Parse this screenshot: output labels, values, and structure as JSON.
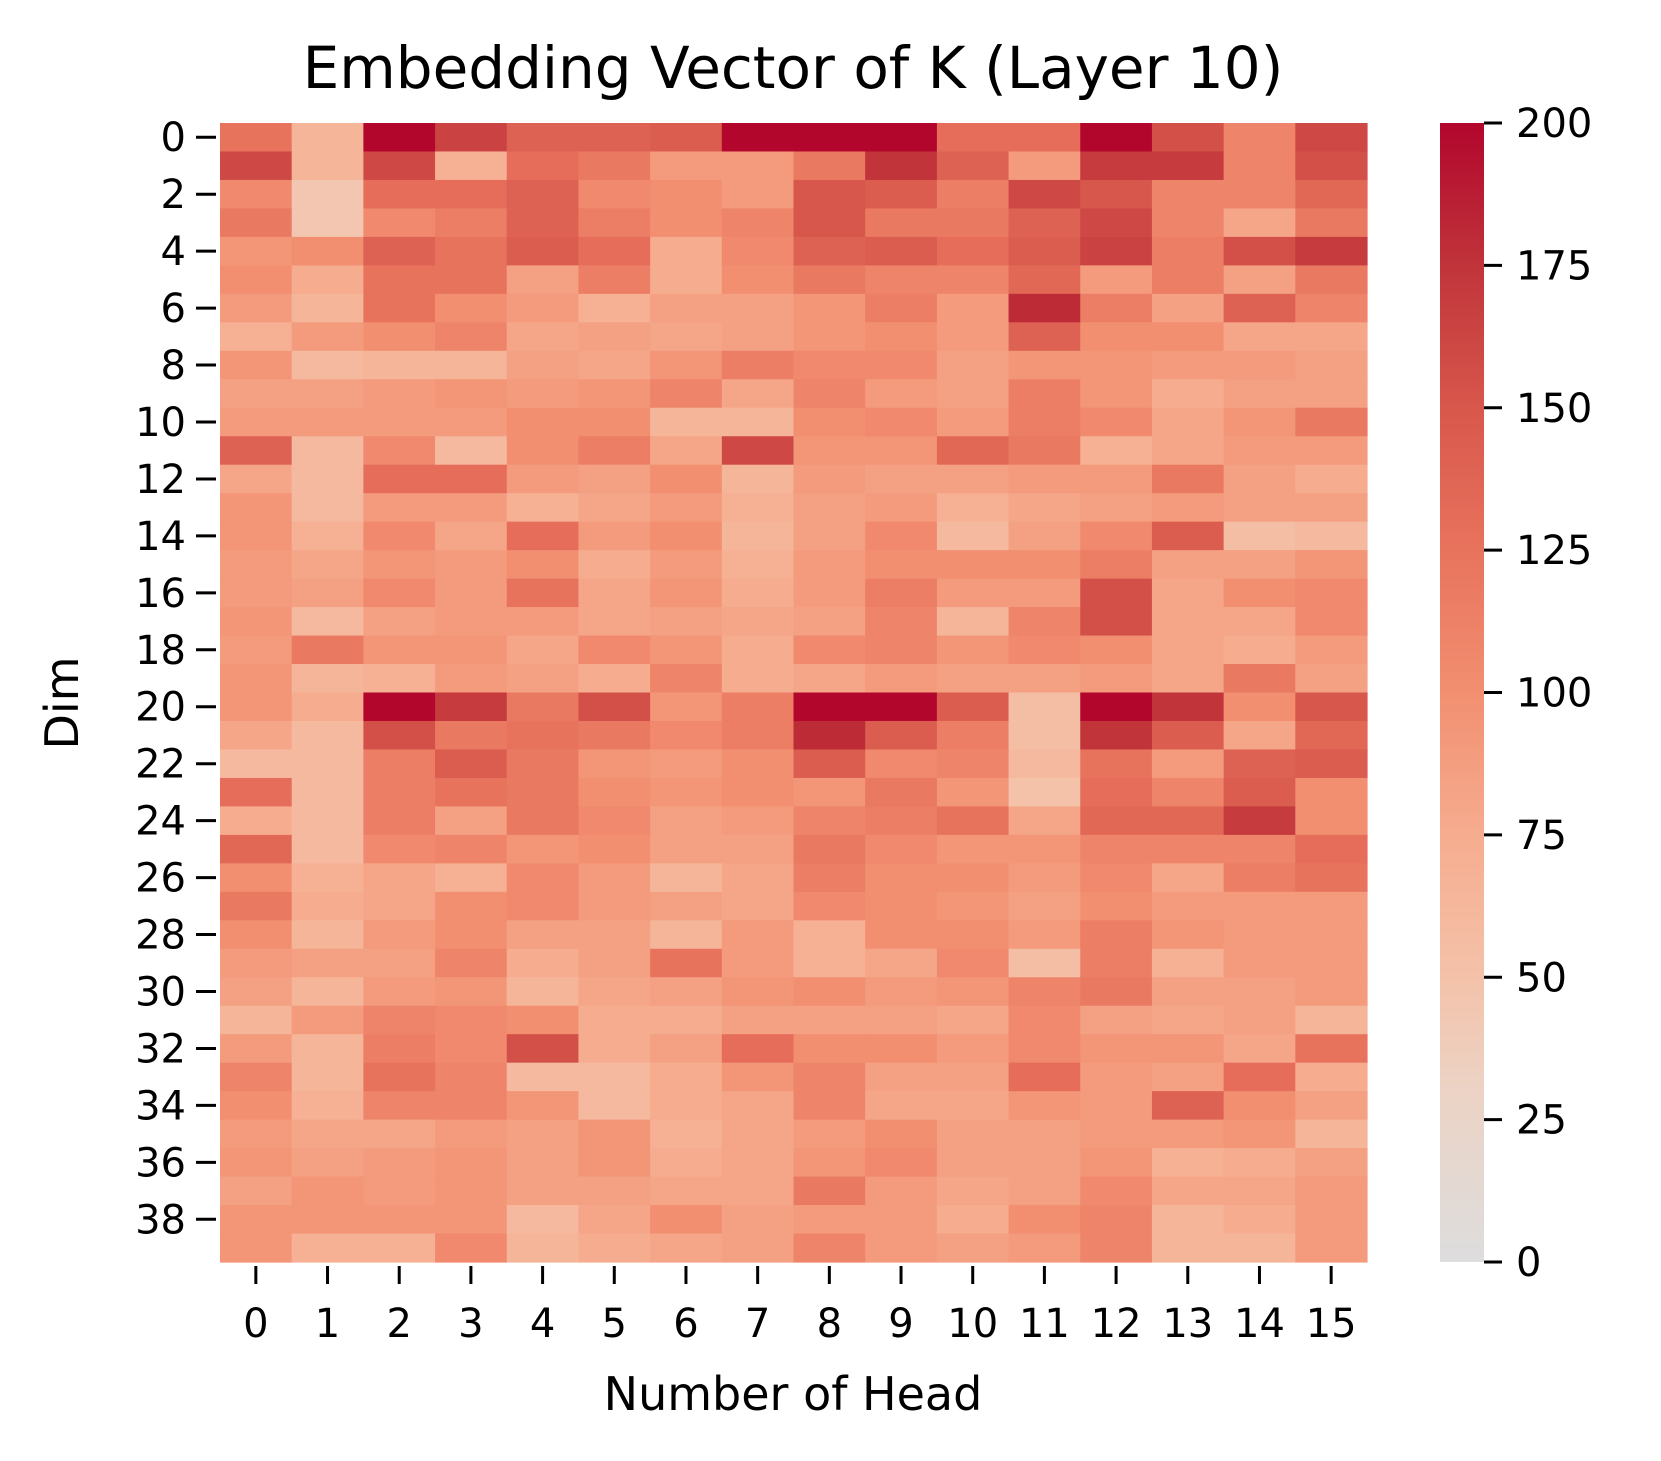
{
  "chart_data": {
    "type": "heatmap",
    "title": "Embedding Vector of K (Layer 10)",
    "xlabel": "Number of Head",
    "ylabel": "Dim",
    "x_ticks": [
      "0",
      "1",
      "2",
      "3",
      "4",
      "5",
      "6",
      "7",
      "8",
      "9",
      "10",
      "11",
      "12",
      "13",
      "14",
      "15"
    ],
    "y_ticks": [
      "0",
      "2",
      "4",
      "6",
      "8",
      "10",
      "12",
      "14",
      "16",
      "18",
      "20",
      "22",
      "24",
      "26",
      "28",
      "30",
      "32",
      "34",
      "36",
      "38"
    ],
    "colorbar": {
      "min": 0,
      "max": 200,
      "ticks": [
        "0",
        "25",
        "50",
        "75",
        "100",
        "125",
        "150",
        "175",
        "200"
      ]
    },
    "colormap": {
      "stops": [
        {
          "v": 0,
          "color": "#dddddd"
        },
        {
          "v": 30,
          "color": "#ecd3c5"
        },
        {
          "v": 50,
          "color": "#f4c2a9"
        },
        {
          "v": 75,
          "color": "#f6ac8f"
        },
        {
          "v": 100,
          "color": "#f28f71"
        },
        {
          "v": 125,
          "color": "#e8735d"
        },
        {
          "v": 150,
          "color": "#d8574c"
        },
        {
          "v": 175,
          "color": "#c0343a"
        },
        {
          "v": 200,
          "color": "#b2062d"
        }
      ]
    },
    "matrix": [
      [
        125,
        65,
        205,
        165,
        140,
        140,
        145,
        205,
        205,
        205,
        130,
        130,
        205,
        155,
        110,
        160
      ],
      [
        160,
        65,
        160,
        70,
        130,
        120,
        90,
        90,
        120,
        175,
        140,
        90,
        170,
        170,
        110,
        155
      ],
      [
        105,
        45,
        130,
        130,
        140,
        105,
        100,
        90,
        150,
        145,
        115,
        160,
        150,
        110,
        110,
        135
      ],
      [
        120,
        45,
        105,
        115,
        140,
        115,
        100,
        110,
        150,
        120,
        120,
        140,
        160,
        110,
        80,
        120
      ],
      [
        95,
        100,
        140,
        125,
        145,
        130,
        75,
        105,
        140,
        145,
        130,
        145,
        165,
        115,
        155,
        170
      ],
      [
        100,
        75,
        125,
        125,
        85,
        115,
        75,
        100,
        120,
        110,
        110,
        135,
        90,
        115,
        85,
        120
      ],
      [
        90,
        65,
        125,
        100,
        90,
        70,
        85,
        85,
        95,
        115,
        90,
        180,
        115,
        85,
        140,
        110
      ],
      [
        70,
        90,
        100,
        110,
        80,
        85,
        80,
        85,
        95,
        100,
        90,
        140,
        100,
        100,
        80,
        80
      ],
      [
        95,
        60,
        65,
        65,
        85,
        80,
        95,
        115,
        105,
        105,
        85,
        95,
        95,
        90,
        90,
        85
      ],
      [
        85,
        85,
        90,
        95,
        90,
        95,
        110,
        80,
        110,
        90,
        85,
        115,
        95,
        75,
        85,
        85
      ],
      [
        90,
        90,
        90,
        90,
        100,
        100,
        65,
        65,
        100,
        105,
        90,
        115,
        105,
        80,
        95,
        120
      ],
      [
        140,
        60,
        105,
        60,
        100,
        115,
        80,
        160,
        95,
        95,
        135,
        120,
        70,
        80,
        90,
        90
      ],
      [
        80,
        60,
        130,
        130,
        90,
        85,
        100,
        65,
        90,
        85,
        85,
        90,
        90,
        120,
        85,
        75
      ],
      [
        95,
        60,
        90,
        90,
        70,
        80,
        90,
        70,
        85,
        90,
        70,
        80,
        85,
        90,
        85,
        85
      ],
      [
        95,
        70,
        105,
        80,
        130,
        90,
        100,
        65,
        85,
        105,
        60,
        85,
        105,
        145,
        55,
        60
      ],
      [
        90,
        80,
        95,
        90,
        100,
        75,
        90,
        70,
        90,
        100,
        100,
        100,
        115,
        85,
        85,
        95
      ],
      [
        90,
        85,
        105,
        90,
        125,
        80,
        95,
        75,
        90,
        115,
        90,
        90,
        155,
        80,
        100,
        105
      ],
      [
        95,
        60,
        85,
        90,
        90,
        80,
        85,
        80,
        85,
        110,
        65,
        110,
        155,
        80,
        80,
        105
      ],
      [
        90,
        120,
        95,
        95,
        80,
        105,
        95,
        75,
        105,
        110,
        95,
        105,
        100,
        80,
        75,
        90
      ],
      [
        95,
        65,
        70,
        90,
        85,
        75,
        110,
        75,
        80,
        90,
        85,
        85,
        90,
        80,
        120,
        85
      ],
      [
        95,
        75,
        205,
        170,
        120,
        155,
        95,
        115,
        205,
        205,
        145,
        55,
        205,
        175,
        100,
        150
      ],
      [
        80,
        60,
        155,
        120,
        125,
        120,
        105,
        115,
        180,
        145,
        115,
        55,
        175,
        145,
        80,
        135
      ],
      [
        60,
        60,
        115,
        145,
        120,
        95,
        90,
        100,
        145,
        105,
        110,
        60,
        125,
        90,
        140,
        145
      ],
      [
        130,
        60,
        115,
        125,
        120,
        100,
        95,
        100,
        95,
        120,
        95,
        50,
        130,
        110,
        145,
        100
      ],
      [
        75,
        60,
        115,
        85,
        120,
        105,
        85,
        90,
        110,
        115,
        125,
        80,
        135,
        135,
        170,
        100
      ],
      [
        135,
        60,
        105,
        110,
        95,
        100,
        85,
        85,
        120,
        105,
        95,
        95,
        110,
        110,
        110,
        130
      ],
      [
        100,
        70,
        80,
        70,
        105,
        90,
        65,
        80,
        115,
        100,
        100,
        90,
        105,
        80,
        115,
        125
      ],
      [
        120,
        75,
        80,
        100,
        105,
        90,
        85,
        80,
        105,
        100,
        95,
        85,
        100,
        90,
        90,
        90
      ],
      [
        100,
        65,
        90,
        100,
        85,
        85,
        65,
        90,
        70,
        100,
        100,
        90,
        115,
        95,
        90,
        90
      ],
      [
        90,
        85,
        85,
        110,
        75,
        85,
        125,
        90,
        70,
        80,
        105,
        55,
        115,
        70,
        90,
        90
      ],
      [
        85,
        65,
        90,
        95,
        65,
        80,
        85,
        95,
        100,
        90,
        95,
        110,
        120,
        85,
        85,
        90
      ],
      [
        65,
        90,
        110,
        105,
        100,
        75,
        75,
        85,
        85,
        85,
        80,
        105,
        85,
        80,
        85,
        65
      ],
      [
        90,
        65,
        115,
        105,
        155,
        75,
        85,
        130,
        100,
        100,
        90,
        105,
        95,
        95,
        80,
        125
      ],
      [
        110,
        65,
        125,
        110,
        60,
        60,
        75,
        95,
        110,
        85,
        85,
        130,
        90,
        85,
        130,
        75
      ],
      [
        100,
        70,
        110,
        110,
        95,
        60,
        75,
        80,
        110,
        80,
        80,
        95,
        90,
        140,
        100,
        85
      ],
      [
        90,
        80,
        80,
        90,
        85,
        95,
        70,
        80,
        90,
        100,
        85,
        85,
        90,
        90,
        95,
        65
      ],
      [
        95,
        85,
        90,
        95,
        85,
        95,
        75,
        80,
        95,
        105,
        85,
        85,
        95,
        70,
        75,
        85
      ],
      [
        85,
        95,
        90,
        95,
        85,
        85,
        80,
        80,
        120,
        90,
        80,
        85,
        105,
        80,
        80,
        90
      ],
      [
        95,
        95,
        95,
        95,
        60,
        80,
        100,
        85,
        90,
        90,
        75,
        100,
        110,
        65,
        75,
        90
      ],
      [
        95,
        70,
        70,
        105,
        65,
        75,
        80,
        85,
        110,
        90,
        85,
        90,
        110,
        65,
        65,
        90
      ]
    ]
  }
}
